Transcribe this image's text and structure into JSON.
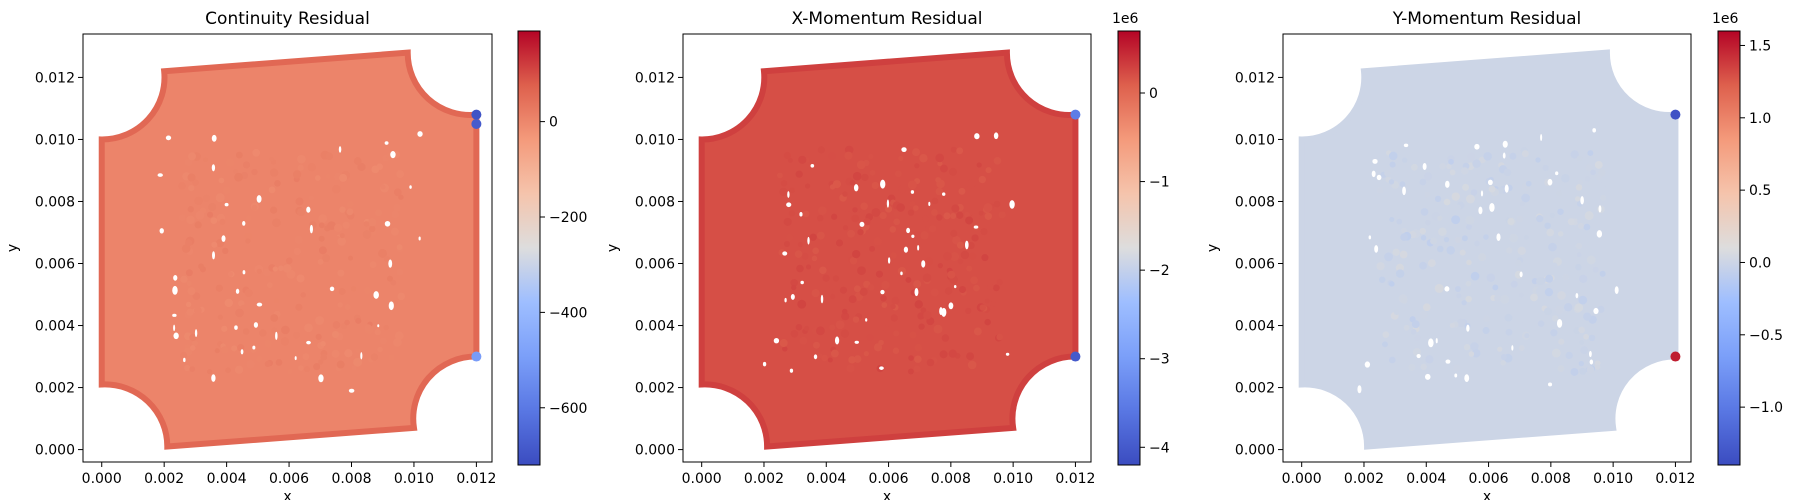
{
  "chart_data": [
    {
      "type": "scatter",
      "title": "Continuity Residual",
      "xlabel": "x",
      "ylabel": "y",
      "xlim": [
        -0.0006,
        0.0125
      ],
      "ylim": [
        -0.0004,
        0.0134
      ],
      "xticks": [
        0.0,
        0.002,
        0.004,
        0.006,
        0.008,
        0.01,
        0.012
      ],
      "xtick_labels": [
        "0.000",
        "0.002",
        "0.004",
        "0.006",
        "0.008",
        "0.010",
        "0.012"
      ],
      "yticks": [
        0.0,
        0.002,
        0.004,
        0.006,
        0.008,
        0.01,
        0.012
      ],
      "ytick_labels": [
        "0.000",
        "0.002",
        "0.004",
        "0.006",
        "0.008",
        "0.010",
        "0.012"
      ],
      "colormap": "coolwarm",
      "colorbar": {
        "range": [
          -720,
          190
        ],
        "ticks": [
          -600,
          -400,
          -200,
          0
        ],
        "tick_labels": [
          "−600",
          "−400",
          "−200",
          "0"
        ],
        "offset": ""
      },
      "domain_shape": "square 0–0.012 with quarter-circle cutouts (radius 0.002) at the four corners, slightly tilted",
      "field_value_typical": 5,
      "field_value_walls": 60,
      "outliers": [
        {
          "x": 0.012,
          "y": 0.0108,
          "value": -700
        },
        {
          "x": 0.012,
          "y": 0.0105,
          "value": -680
        },
        {
          "x": 0.012,
          "y": 0.003,
          "value": -500
        }
      ]
    },
    {
      "type": "scatter",
      "title": "X-Momentum Residual",
      "xlabel": "x",
      "ylabel": "y",
      "xlim": [
        -0.0006,
        0.0125
      ],
      "ylim": [
        -0.0004,
        0.0134
      ],
      "xticks": [
        0.0,
        0.002,
        0.004,
        0.006,
        0.008,
        0.01,
        0.012
      ],
      "xtick_labels": [
        "0.000",
        "0.002",
        "0.004",
        "0.006",
        "0.008",
        "0.010",
        "0.012"
      ],
      "yticks": [
        0.0,
        0.002,
        0.004,
        0.006,
        0.008,
        0.01,
        0.012
      ],
      "ytick_labels": [
        "0.000",
        "0.002",
        "0.004",
        "0.006",
        "0.008",
        "0.010",
        "0.012"
      ],
      "colormap": "coolwarm",
      "colorbar": {
        "range": [
          -4200000,
          700000
        ],
        "ticks": [
          -4000000,
          -3000000,
          -2000000,
          -1000000,
          0
        ],
        "tick_labels": [
          "−4",
          "−3",
          "−2",
          "−1",
          "0"
        ],
        "offset": "1e6"
      },
      "domain_shape": "square 0–0.012 with quarter-circle cutouts (radius 0.002) at the four corners, slightly tilted",
      "field_value_typical": 200000,
      "field_value_walls": 300000,
      "outliers": [
        {
          "x": 0.012,
          "y": 0.0108,
          "value": -3500000
        },
        {
          "x": 0.012,
          "y": 0.003,
          "value": -4000000
        }
      ]
    },
    {
      "type": "scatter",
      "title": "Y-Momentum Residual",
      "xlabel": "x",
      "ylabel": "y",
      "xlim": [
        -0.0006,
        0.0125
      ],
      "ylim": [
        -0.0004,
        0.0134
      ],
      "xticks": [
        0.0,
        0.002,
        0.004,
        0.006,
        0.008,
        0.01,
        0.012
      ],
      "xtick_labels": [
        "0.000",
        "0.002",
        "0.004",
        "0.006",
        "0.008",
        "0.010",
        "0.012"
      ],
      "yticks": [
        0.0,
        0.002,
        0.004,
        0.006,
        0.008,
        0.01,
        0.012
      ],
      "ytick_labels": [
        "0.000",
        "0.002",
        "0.004",
        "0.006",
        "0.008",
        "0.010",
        "0.012"
      ],
      "colormap": "coolwarm",
      "colorbar": {
        "range": [
          -1400000,
          1600000
        ],
        "ticks": [
          -1000000,
          -500000,
          0,
          500000,
          1000000,
          1500000
        ],
        "tick_labels": [
          "−1.0",
          "−0.5",
          "0.0",
          "0.5",
          "1.0",
          "1.5"
        ],
        "offset": "1e6"
      },
      "domain_shape": "square 0–0.012 with quarter-circle cutouts (radius 0.002) at the four corners, slightly tilted",
      "field_value_typical": 0,
      "field_value_walls": 0,
      "outliers": [
        {
          "x": 0.012,
          "y": 0.0108,
          "value": -1350000
        },
        {
          "x": 0.012,
          "y": 0.003,
          "value": 1500000
        }
      ]
    }
  ]
}
